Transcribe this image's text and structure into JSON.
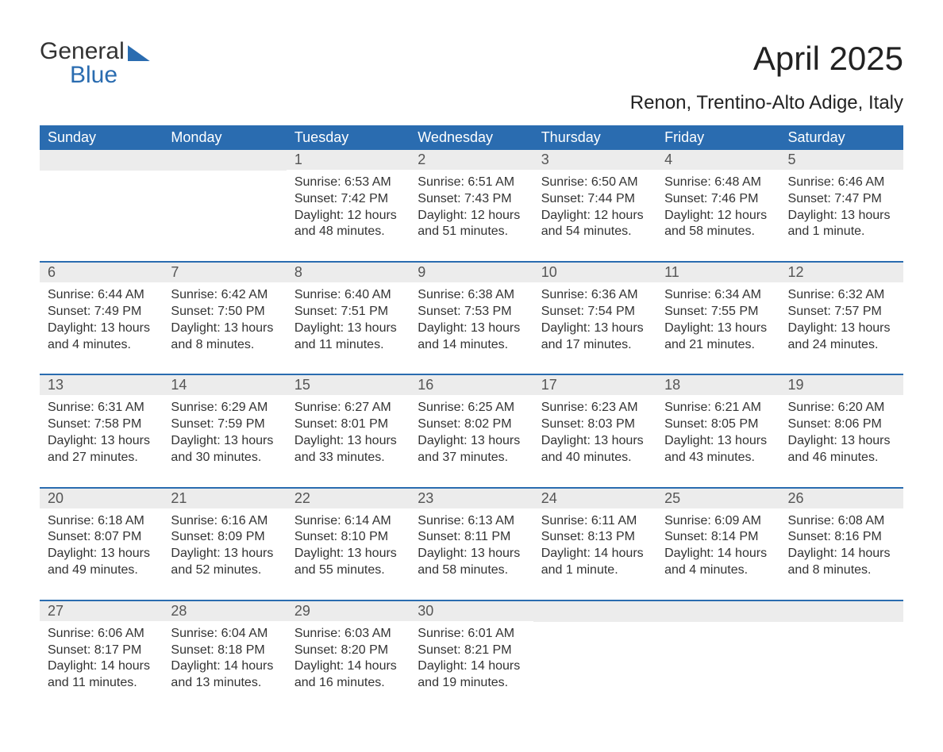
{
  "brand": {
    "word1": "General",
    "word2": "Blue"
  },
  "title": "April 2025",
  "location": "Renon, Trentino-Alto Adige, Italy",
  "colors": {
    "header_bg": "#2a6cb0",
    "header_text": "#ffffff",
    "daynum_bg": "#ececec",
    "row_border": "#2a6cb0",
    "body_text": "#333333",
    "page_bg": "#ffffff"
  },
  "typography": {
    "title_fontsize": 42,
    "subtitle_fontsize": 24,
    "header_fontsize": 18,
    "daynum_fontsize": 18,
    "content_fontsize": 16,
    "font_family": "Segoe UI"
  },
  "weekdays": [
    "Sunday",
    "Monday",
    "Tuesday",
    "Wednesday",
    "Thursday",
    "Friday",
    "Saturday"
  ],
  "weeks": [
    [
      null,
      null,
      {
        "n": "1",
        "sr": "Sunrise: 6:53 AM",
        "ss": "Sunset: 7:42 PM",
        "dl": "Daylight: 12 hours and 48 minutes."
      },
      {
        "n": "2",
        "sr": "Sunrise: 6:51 AM",
        "ss": "Sunset: 7:43 PM",
        "dl": "Daylight: 12 hours and 51 minutes."
      },
      {
        "n": "3",
        "sr": "Sunrise: 6:50 AM",
        "ss": "Sunset: 7:44 PM",
        "dl": "Daylight: 12 hours and 54 minutes."
      },
      {
        "n": "4",
        "sr": "Sunrise: 6:48 AM",
        "ss": "Sunset: 7:46 PM",
        "dl": "Daylight: 12 hours and 58 minutes."
      },
      {
        "n": "5",
        "sr": "Sunrise: 6:46 AM",
        "ss": "Sunset: 7:47 PM",
        "dl": "Daylight: 13 hours and 1 minute."
      }
    ],
    [
      {
        "n": "6",
        "sr": "Sunrise: 6:44 AM",
        "ss": "Sunset: 7:49 PM",
        "dl": "Daylight: 13 hours and 4 minutes."
      },
      {
        "n": "7",
        "sr": "Sunrise: 6:42 AM",
        "ss": "Sunset: 7:50 PM",
        "dl": "Daylight: 13 hours and 8 minutes."
      },
      {
        "n": "8",
        "sr": "Sunrise: 6:40 AM",
        "ss": "Sunset: 7:51 PM",
        "dl": "Daylight: 13 hours and 11 minutes."
      },
      {
        "n": "9",
        "sr": "Sunrise: 6:38 AM",
        "ss": "Sunset: 7:53 PM",
        "dl": "Daylight: 13 hours and 14 minutes."
      },
      {
        "n": "10",
        "sr": "Sunrise: 6:36 AM",
        "ss": "Sunset: 7:54 PM",
        "dl": "Daylight: 13 hours and 17 minutes."
      },
      {
        "n": "11",
        "sr": "Sunrise: 6:34 AM",
        "ss": "Sunset: 7:55 PM",
        "dl": "Daylight: 13 hours and 21 minutes."
      },
      {
        "n": "12",
        "sr": "Sunrise: 6:32 AM",
        "ss": "Sunset: 7:57 PM",
        "dl": "Daylight: 13 hours and 24 minutes."
      }
    ],
    [
      {
        "n": "13",
        "sr": "Sunrise: 6:31 AM",
        "ss": "Sunset: 7:58 PM",
        "dl": "Daylight: 13 hours and 27 minutes."
      },
      {
        "n": "14",
        "sr": "Sunrise: 6:29 AM",
        "ss": "Sunset: 7:59 PM",
        "dl": "Daylight: 13 hours and 30 minutes."
      },
      {
        "n": "15",
        "sr": "Sunrise: 6:27 AM",
        "ss": "Sunset: 8:01 PM",
        "dl": "Daylight: 13 hours and 33 minutes."
      },
      {
        "n": "16",
        "sr": "Sunrise: 6:25 AM",
        "ss": "Sunset: 8:02 PM",
        "dl": "Daylight: 13 hours and 37 minutes."
      },
      {
        "n": "17",
        "sr": "Sunrise: 6:23 AM",
        "ss": "Sunset: 8:03 PM",
        "dl": "Daylight: 13 hours and 40 minutes."
      },
      {
        "n": "18",
        "sr": "Sunrise: 6:21 AM",
        "ss": "Sunset: 8:05 PM",
        "dl": "Daylight: 13 hours and 43 minutes."
      },
      {
        "n": "19",
        "sr": "Sunrise: 6:20 AM",
        "ss": "Sunset: 8:06 PM",
        "dl": "Daylight: 13 hours and 46 minutes."
      }
    ],
    [
      {
        "n": "20",
        "sr": "Sunrise: 6:18 AM",
        "ss": "Sunset: 8:07 PM",
        "dl": "Daylight: 13 hours and 49 minutes."
      },
      {
        "n": "21",
        "sr": "Sunrise: 6:16 AM",
        "ss": "Sunset: 8:09 PM",
        "dl": "Daylight: 13 hours and 52 minutes."
      },
      {
        "n": "22",
        "sr": "Sunrise: 6:14 AM",
        "ss": "Sunset: 8:10 PM",
        "dl": "Daylight: 13 hours and 55 minutes."
      },
      {
        "n": "23",
        "sr": "Sunrise: 6:13 AM",
        "ss": "Sunset: 8:11 PM",
        "dl": "Daylight: 13 hours and 58 minutes."
      },
      {
        "n": "24",
        "sr": "Sunrise: 6:11 AM",
        "ss": "Sunset: 8:13 PM",
        "dl": "Daylight: 14 hours and 1 minute."
      },
      {
        "n": "25",
        "sr": "Sunrise: 6:09 AM",
        "ss": "Sunset: 8:14 PM",
        "dl": "Daylight: 14 hours and 4 minutes."
      },
      {
        "n": "26",
        "sr": "Sunrise: 6:08 AM",
        "ss": "Sunset: 8:16 PM",
        "dl": "Daylight: 14 hours and 8 minutes."
      }
    ],
    [
      {
        "n": "27",
        "sr": "Sunrise: 6:06 AM",
        "ss": "Sunset: 8:17 PM",
        "dl": "Daylight: 14 hours and 11 minutes."
      },
      {
        "n": "28",
        "sr": "Sunrise: 6:04 AM",
        "ss": "Sunset: 8:18 PM",
        "dl": "Daylight: 14 hours and 13 minutes."
      },
      {
        "n": "29",
        "sr": "Sunrise: 6:03 AM",
        "ss": "Sunset: 8:20 PM",
        "dl": "Daylight: 14 hours and 16 minutes."
      },
      {
        "n": "30",
        "sr": "Sunrise: 6:01 AM",
        "ss": "Sunset: 8:21 PM",
        "dl": "Daylight: 14 hours and 19 minutes."
      },
      null,
      null,
      null
    ]
  ]
}
